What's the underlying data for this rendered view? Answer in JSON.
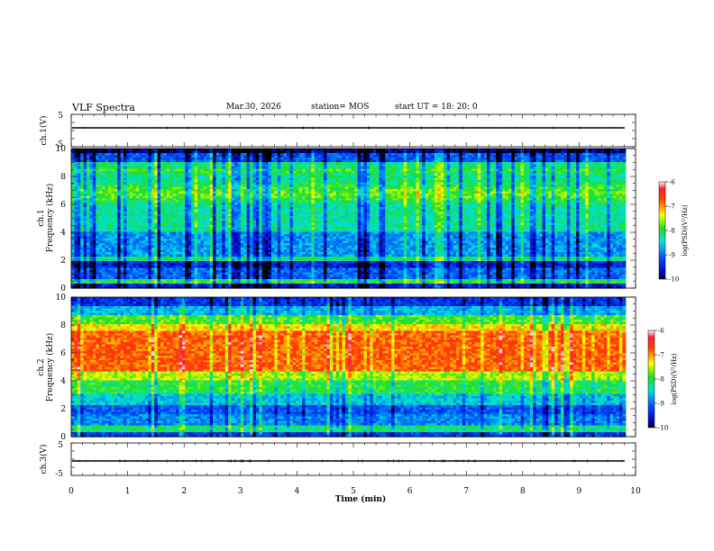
{
  "header": {
    "title": "VLF Spectra",
    "date": "Mar.30, 2026",
    "station": "station= MOS",
    "start": "start  UT =   18: 20: 0"
  },
  "chart_data": [
    {
      "type": "line",
      "panel": "ch1-waveform",
      "ylabel": "ch.1(V)",
      "ylim": [
        -5,
        5
      ],
      "yticks": [
        "5",
        "-5"
      ],
      "baseline": 0
    },
    {
      "type": "heatmap",
      "panel": "ch1-spectrogram",
      "ylabel_top": "ch.1",
      "ylabel": "Frequency (kHz)",
      "ylim": [
        0,
        10
      ],
      "yticks": [
        "0",
        "2",
        "4",
        "6",
        "8",
        "10"
      ],
      "colorbar": {
        "label": "log(PSD)(V²/Hz)",
        "range": [
          -10,
          -6
        ],
        "ticks": [
          "-6",
          "-7",
          "-8",
          "-9",
          "-10"
        ]
      }
    },
    {
      "type": "heatmap",
      "panel": "ch2-spectrogram",
      "ylabel_top": "ch.2",
      "ylabel": "Frequency (kHz)",
      "ylim": [
        0,
        10
      ],
      "yticks": [
        "0",
        "2",
        "4",
        "6",
        "8",
        "10"
      ],
      "colorbar": {
        "label": "log(PSD)(V²/Hz)",
        "range": [
          -10,
          -6
        ],
        "ticks": [
          "-6",
          "-7",
          "-8",
          "-9",
          "-10"
        ]
      }
    },
    {
      "type": "line",
      "panel": "ch3-waveform",
      "ylabel": "ch.3(V)",
      "ylim": [
        -5,
        5
      ],
      "yticks": [
        "5",
        "-5"
      ],
      "baseline": 0
    }
  ],
  "xaxis": {
    "label": "Time (min)",
    "xlim": [
      0,
      10
    ],
    "ticks": [
      "0",
      "1",
      "2",
      "3",
      "4",
      "5",
      "6",
      "7",
      "8",
      "9",
      "10"
    ],
    "data_end": 9.82
  }
}
